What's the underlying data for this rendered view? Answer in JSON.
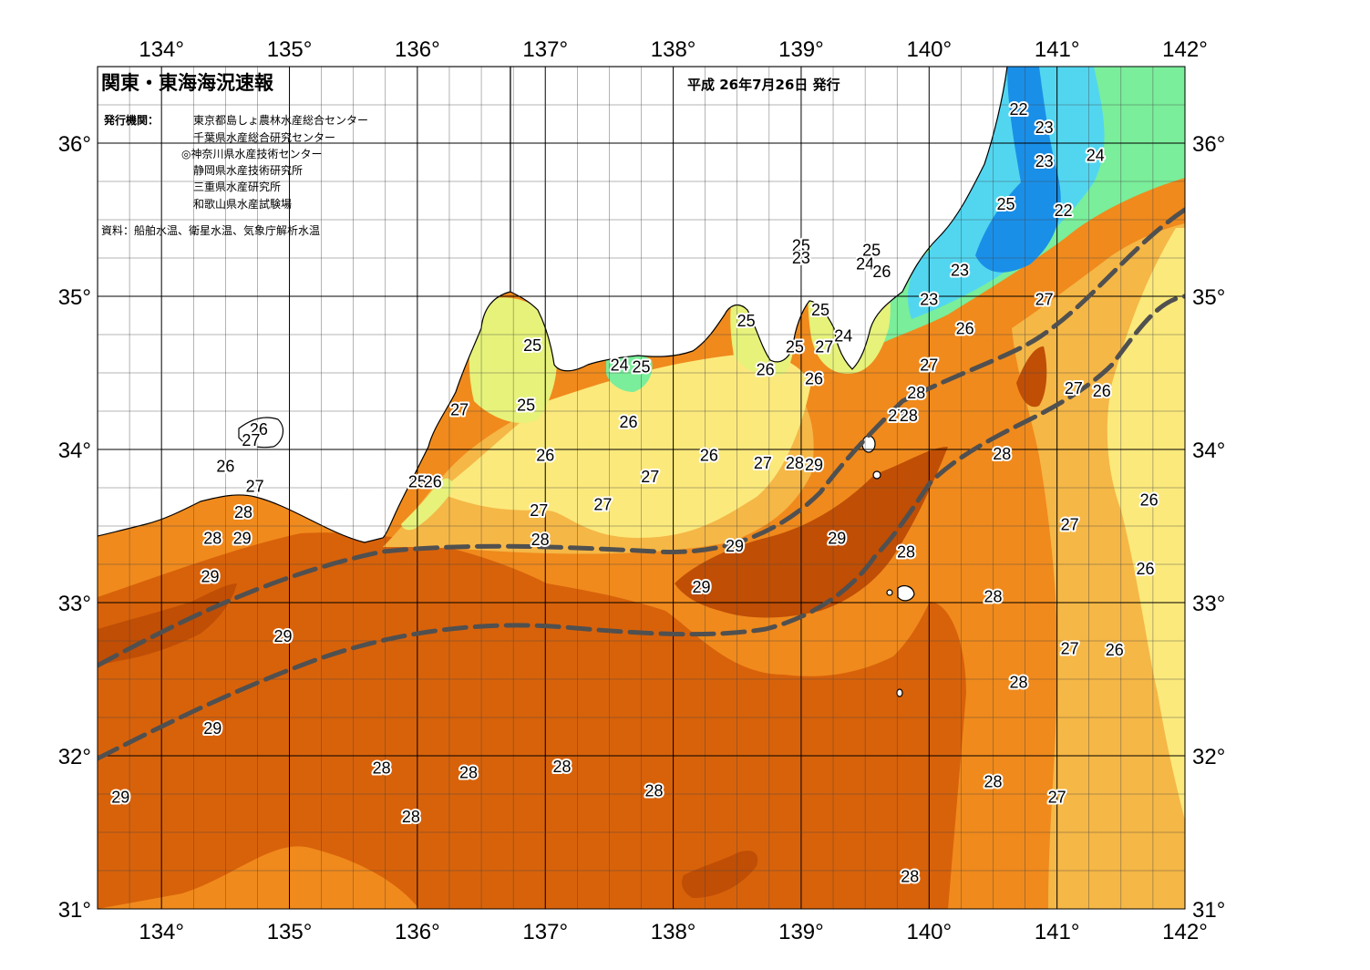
{
  "header": {
    "title": "関東・東海海況速報",
    "date": "平成 26年7月26日 発行",
    "agencies_label": "発行機関：",
    "agencies": [
      "東京都島しょ農林水産総合センター",
      "千葉県水産総合研究センター",
      "◎神奈川県水産技術センター",
      "静岡県水産技術研究所",
      "三重県水産研究所",
      "和歌山県水産試験場"
    ],
    "sources": "資料：船舶水温、衛星水温、気象庁解析水温"
  },
  "axes": {
    "lon_labels": [
      "134°",
      "135°",
      "136°",
      "137°",
      "138°",
      "139°",
      "140°",
      "141°",
      "142°"
    ],
    "lat_labels": [
      "31°",
      "32°",
      "33°",
      "34°",
      "35°",
      "36°"
    ],
    "lon_range": [
      133.5,
      142.0
    ],
    "lat_range": [
      31.0,
      36.5
    ]
  },
  "colors": {
    "t22": "#1a8fe8",
    "t23": "#52d6f0",
    "t24": "#7aee9a",
    "t25": "#e6f27a",
    "t26": "#fbe97c",
    "t27": "#f5b746",
    "t28": "#f08a1c",
    "t29": "#d8620a",
    "t30": "#c04e05",
    "land": "#ffffff",
    "kuroshio": "#505050"
  },
  "map": {
    "isotherm_labels": [
      {
        "text": "22",
        "lon": 140.7,
        "lat": 36.22
      },
      {
        "text": "23",
        "lon": 140.9,
        "lat": 36.1
      },
      {
        "text": "23",
        "lon": 140.9,
        "lat": 35.88
      },
      {
        "text": "24",
        "lon": 141.3,
        "lat": 35.92
      },
      {
        "text": "25",
        "lon": 140.6,
        "lat": 35.6
      },
      {
        "text": "22",
        "lon": 141.05,
        "lat": 35.56
      },
      {
        "text": "23",
        "lon": 140.24,
        "lat": 35.17
      },
      {
        "text": "23",
        "lon": 140.0,
        "lat": 34.98
      },
      {
        "text": "27",
        "lon": 140.9,
        "lat": 34.98
      },
      {
        "text": "26",
        "lon": 140.28,
        "lat": 34.79
      },
      {
        "text": "27",
        "lon": 140.0,
        "lat": 34.55
      },
      {
        "text": "27",
        "lon": 141.13,
        "lat": 34.4
      },
      {
        "text": "26",
        "lon": 141.35,
        "lat": 34.38
      },
      {
        "text": "28",
        "lon": 139.9,
        "lat": 34.37
      },
      {
        "text": "27",
        "lon": 139.75,
        "lat": 34.22
      },
      {
        "text": "28",
        "lon": 139.84,
        "lat": 34.22
      },
      {
        "text": "28",
        "lon": 140.57,
        "lat": 33.97
      },
      {
        "text": "26",
        "lon": 141.72,
        "lat": 33.67
      },
      {
        "text": "27",
        "lon": 141.1,
        "lat": 33.51
      },
      {
        "text": "26",
        "lon": 141.69,
        "lat": 33.22
      },
      {
        "text": "28",
        "lon": 140.5,
        "lat": 33.04
      },
      {
        "text": "27",
        "lon": 141.1,
        "lat": 32.7
      },
      {
        "text": "26",
        "lon": 141.45,
        "lat": 32.69
      },
      {
        "text": "28",
        "lon": 140.7,
        "lat": 32.48
      },
      {
        "text": "28",
        "lon": 140.5,
        "lat": 31.83
      },
      {
        "text": "27",
        "lon": 141.0,
        "lat": 31.73
      },
      {
        "text": "28",
        "lon": 139.85,
        "lat": 31.21
      },
      {
        "text": "25",
        "lon": 139.0,
        "lat": 35.33
      },
      {
        "text": "23",
        "lon": 139.0,
        "lat": 35.25
      },
      {
        "text": "25",
        "lon": 139.55,
        "lat": 35.3
      },
      {
        "text": "24",
        "lon": 139.5,
        "lat": 35.21
      },
      {
        "text": "26",
        "lon": 139.63,
        "lat": 35.16
      },
      {
        "text": "25",
        "lon": 138.57,
        "lat": 34.84
      },
      {
        "text": "25",
        "lon": 139.15,
        "lat": 34.91
      },
      {
        "text": "25",
        "lon": 138.95,
        "lat": 34.67
      },
      {
        "text": "27",
        "lon": 139.18,
        "lat": 34.67
      },
      {
        "text": "24",
        "lon": 139.33,
        "lat": 34.74
      },
      {
        "text": "26",
        "lon": 138.72,
        "lat": 34.52
      },
      {
        "text": "26",
        "lon": 139.1,
        "lat": 34.46
      },
      {
        "text": "24",
        "lon": 137.58,
        "lat": 34.55
      },
      {
        "text": "25",
        "lon": 137.75,
        "lat": 34.54
      },
      {
        "text": "25",
        "lon": 136.9,
        "lat": 34.68
      },
      {
        "text": "25",
        "lon": 136.85,
        "lat": 34.29
      },
      {
        "text": "27",
        "lon": 136.33,
        "lat": 34.26
      },
      {
        "text": "26",
        "lon": 137.65,
        "lat": 34.18
      },
      {
        "text": "26",
        "lon": 134.76,
        "lat": 34.13
      },
      {
        "text": "27",
        "lon": 134.7,
        "lat": 34.06
      },
      {
        "text": "26",
        "lon": 134.5,
        "lat": 33.89
      },
      {
        "text": "27",
        "lon": 134.73,
        "lat": 33.76
      },
      {
        "text": "26",
        "lon": 137.0,
        "lat": 33.96
      },
      {
        "text": "26",
        "lon": 138.28,
        "lat": 33.96
      },
      {
        "text": "27",
        "lon": 138.7,
        "lat": 33.91
      },
      {
        "text": "28",
        "lon": 138.95,
        "lat": 33.91
      },
      {
        "text": "29",
        "lon": 139.1,
        "lat": 33.9
      },
      {
        "text": "27",
        "lon": 137.82,
        "lat": 33.82
      },
      {
        "text": "25",
        "lon": 136.0,
        "lat": 33.79
      },
      {
        "text": "26",
        "lon": 136.12,
        "lat": 33.79
      },
      {
        "text": "27",
        "lon": 137.45,
        "lat": 33.64
      },
      {
        "text": "27",
        "lon": 136.95,
        "lat": 33.6
      },
      {
        "text": "28",
        "lon": 136.96,
        "lat": 33.41
      },
      {
        "text": "29",
        "lon": 138.48,
        "lat": 33.37
      },
      {
        "text": "29",
        "lon": 139.28,
        "lat": 33.42
      },
      {
        "text": "28",
        "lon": 139.82,
        "lat": 33.33
      },
      {
        "text": "29",
        "lon": 138.22,
        "lat": 33.1
      },
      {
        "text": "28",
        "lon": 134.4,
        "lat": 33.42
      },
      {
        "text": "29",
        "lon": 134.63,
        "lat": 33.42
      },
      {
        "text": "28",
        "lon": 134.64,
        "lat": 33.59
      },
      {
        "text": "29",
        "lon": 134.38,
        "lat": 33.17
      },
      {
        "text": "29",
        "lon": 134.95,
        "lat": 32.78
      },
      {
        "text": "29",
        "lon": 134.4,
        "lat": 32.18
      },
      {
        "text": "29",
        "lon": 133.68,
        "lat": 31.73
      },
      {
        "text": "28",
        "lon": 135.72,
        "lat": 31.92
      },
      {
        "text": "28",
        "lon": 136.4,
        "lat": 31.89
      },
      {
        "text": "28",
        "lon": 137.13,
        "lat": 31.93
      },
      {
        "text": "28",
        "lon": 135.95,
        "lat": 31.6
      },
      {
        "text": "28",
        "lon": 137.85,
        "lat": 31.77
      }
    ]
  }
}
